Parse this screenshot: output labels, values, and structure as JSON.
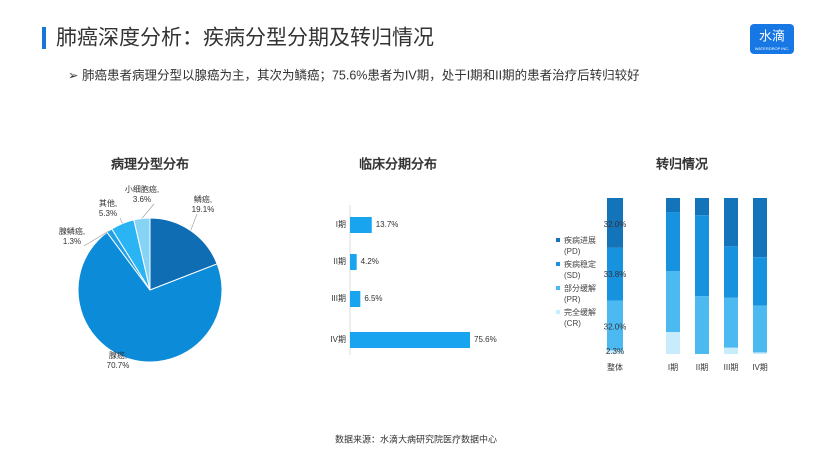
{
  "header": {
    "title": "肺癌深度分析：疾病分型分期及转归情况",
    "subtitle": "➢ 肺癌患者病理分型以腺癌为主，其次为鳞癌；75.6%患者为IV期，处于I期和II期的患者治疗后转归较好",
    "logo": "水滴",
    "logo_sub": "WATERDROP INC."
  },
  "source": "数据来源：水滴大病研究院医疗数据中心",
  "chart_data": [
    {
      "type": "pie",
      "title": "病理分型分布",
      "categories": [
        "鳞癌,",
        "腺癌,",
        "腺鳞癌,",
        "其他,",
        "小细胞癌,"
      ],
      "values": [
        19.1,
        70.7,
        1.3,
        5.3,
        3.6
      ],
      "value_labels": [
        "19.1%",
        "70.7%",
        "1.3%",
        "5.3%",
        "3.6%"
      ],
      "colors": [
        "#0e6db3",
        "#0b8bd8",
        "#1e9fe6",
        "#2bb4f4",
        "#86d3f6"
      ]
    },
    {
      "type": "hbar",
      "title": "临床分期分布",
      "categories": [
        "I期",
        "II期",
        "III期",
        "IV期"
      ],
      "values": [
        13.7,
        4.2,
        6.5,
        75.6
      ],
      "value_labels": [
        "13.7%",
        "4.2%",
        "6.5%",
        "75.6%"
      ],
      "color": "#18a4ef"
    },
    {
      "type": "stacked_bar",
      "title": "转归情况",
      "categories": [
        "整体",
        "I期",
        "II期",
        "III期",
        "IV期"
      ],
      "series": [
        {
          "name": "疾病进展\n(PD)",
          "color": "#1474b9",
          "values": [
            32.0,
            9,
            11,
            31,
            38
          ],
          "value_labels": [
            "32.0%",
            null,
            null,
            null,
            null
          ]
        },
        {
          "name": "疾病稳定\n(SD)",
          "color": "#1692df",
          "values": [
            33.8,
            38,
            52,
            33,
            31
          ],
          "value_labels": [
            "33.8%",
            null,
            null,
            null,
            null
          ]
        },
        {
          "name": "部分缓解\n(PR)",
          "color": "#4cb9f1",
          "values": [
            32.0,
            39,
            37,
            32,
            30
          ],
          "value_labels": [
            "32.0%",
            null,
            null,
            null,
            null
          ]
        },
        {
          "name": "完全缓解\n(CR)",
          "color": "#c8ecfb",
          "values": [
            2.3,
            14,
            0,
            4,
            1
          ],
          "value_labels": [
            "2.3%",
            null,
            null,
            null,
            null
          ]
        }
      ]
    }
  ]
}
